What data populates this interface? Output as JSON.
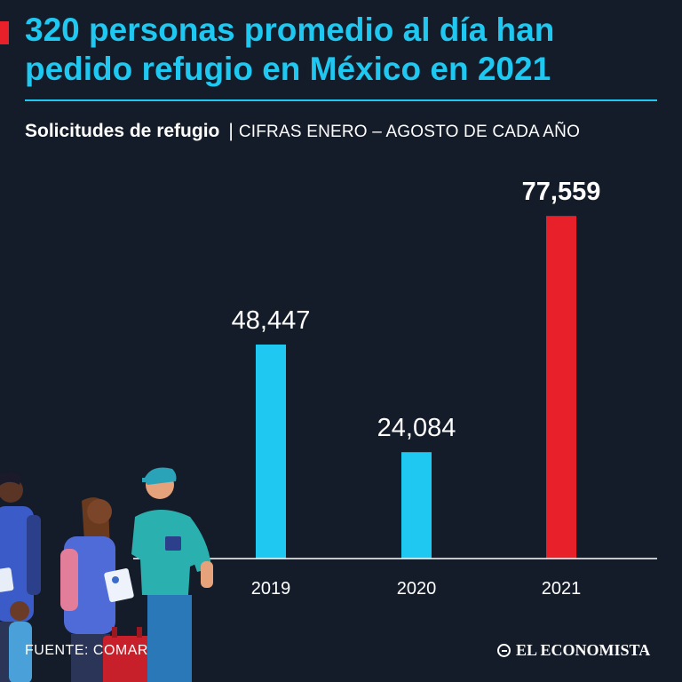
{
  "header": {
    "title": "320 personas promedio al día han pedido refugio en México en 2021",
    "subtitle_strong": "Solicitudes de refugio",
    "subtitle_sep": "|",
    "subtitle_note": "CIFRAS ENERO – AGOSTO DE CADA AÑO"
  },
  "footer": {
    "source": "FUENTE: COMAR",
    "brand": "EL ECONOMISTA"
  },
  "colors": {
    "accent": "#1ec8f0",
    "highlight": "#e8202a",
    "background": "#141b29"
  },
  "chart_data": {
    "type": "bar",
    "title": "Solicitudes de refugio",
    "categories": [
      "2019",
      "2020",
      "2021"
    ],
    "values": [
      48447,
      24084,
      77559
    ],
    "value_labels": [
      "48,447",
      "24,084",
      "77,559"
    ],
    "highlight_index": 2,
    "xlabel": "",
    "ylabel": "",
    "ylim": [
      0,
      80000
    ],
    "grid": false
  }
}
